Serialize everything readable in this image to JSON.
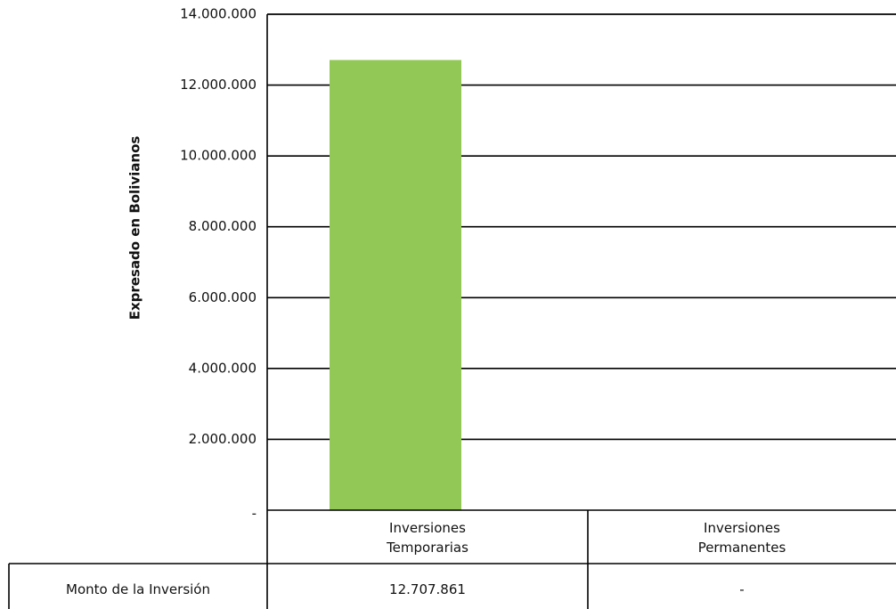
{
  "chart_data": {
    "type": "bar",
    "ylabel": "Expresado en Bolivianos",
    "ylim": [
      0,
      14000000
    ],
    "yticks": [
      "14.000.000",
      "12.000.000",
      "10.000.000",
      "8.000.000",
      "6.000.000",
      "4.000.000",
      "2.000.000",
      "-"
    ],
    "ytick_values": [
      14000000,
      12000000,
      10000000,
      8000000,
      6000000,
      4000000,
      2000000,
      0
    ],
    "categories": [
      [
        "Inversiones",
        "Temporarias"
      ],
      [
        "Inversiones",
        "Permanentes"
      ]
    ],
    "values": [
      12707861,
      0
    ],
    "bar_color": "#92c956",
    "grid": true
  },
  "table": {
    "row_label": "Monto de la Inversión",
    "cells": [
      "12.707.861",
      "-"
    ]
  }
}
